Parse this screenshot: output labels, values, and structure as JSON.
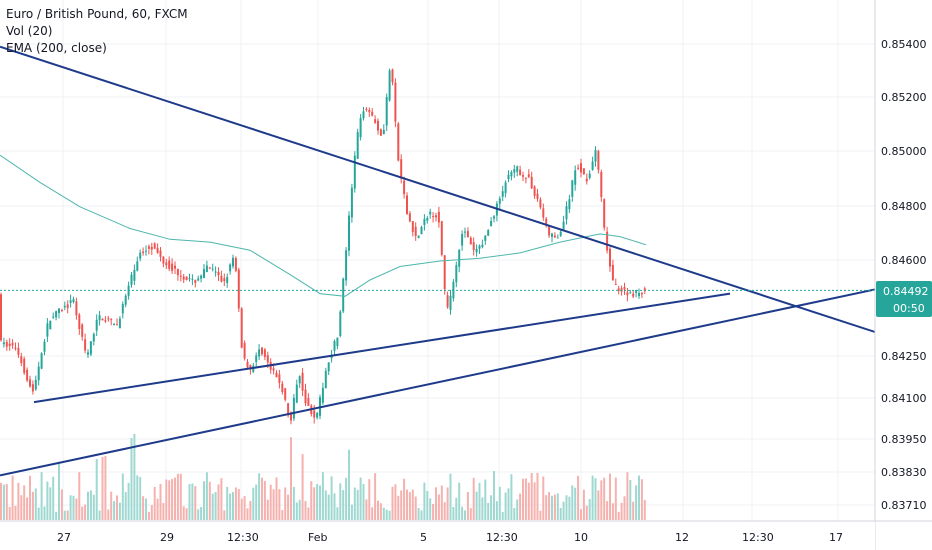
{
  "legend": {
    "symbol": "Euro / British Pound, 60, FXCM",
    "vol": "Vol (20)",
    "ema": "EMA (200, close)"
  },
  "colors": {
    "up": "#26a69a",
    "down": "#ef5350",
    "up_vol": "#9fd8d1",
    "down_vol": "#f5b1ae",
    "ema": "#4db6ac",
    "trendline": "#1e3a8a",
    "last_price_bg": "#26a69a",
    "grid": "#eef1f5"
  },
  "chart_data": {
    "type": "candlestick",
    "symbol": "Euro / British Pound, 60, FXCM",
    "y_axis_ticks": [
      "0.85400",
      "0.85200",
      "0.85000",
      "0.84800",
      "0.84600",
      "0.84250",
      "0.84100",
      "0.83950",
      "0.83830",
      "0.83710"
    ],
    "x_axis_ticks": [
      "27",
      "29",
      "12:30",
      "Feb",
      "5",
      "12:30",
      "10",
      "12",
      "12:30",
      "17"
    ],
    "last_price": "0.84492",
    "countdown": "00:50",
    "price_path": [
      [
        0,
        0.843
      ],
      [
        18,
        0.8428
      ],
      [
        34,
        0.8411
      ],
      [
        50,
        0.8438
      ],
      [
        62,
        0.8442
      ],
      [
        75,
        0.8445
      ],
      [
        88,
        0.8424
      ],
      [
        100,
        0.844
      ],
      [
        118,
        0.8436
      ],
      [
        128,
        0.8448
      ],
      [
        140,
        0.8462
      ],
      [
        152,
        0.8466
      ],
      [
        165,
        0.846
      ],
      [
        178,
        0.8456
      ],
      [
        195,
        0.8452
      ],
      [
        210,
        0.8458
      ],
      [
        225,
        0.8452
      ],
      [
        236,
        0.8462
      ],
      [
        244,
        0.8425
      ],
      [
        252,
        0.842
      ],
      [
        262,
        0.8428
      ],
      [
        272,
        0.842
      ],
      [
        282,
        0.8415
      ],
      [
        292,
        0.84
      ],
      [
        300,
        0.842
      ],
      [
        308,
        0.8407
      ],
      [
        318,
        0.8402
      ],
      [
        328,
        0.8421
      ],
      [
        340,
        0.8434
      ],
      [
        348,
        0.8466
      ],
      [
        358,
        0.8505
      ],
      [
        366,
        0.8518
      ],
      [
        376,
        0.8512
      ],
      [
        384,
        0.8505
      ],
      [
        392,
        0.8534
      ],
      [
        400,
        0.8496
      ],
      [
        408,
        0.8478
      ],
      [
        418,
        0.8468
      ],
      [
        430,
        0.8478
      ],
      [
        440,
        0.8477
      ],
      [
        448,
        0.844
      ],
      [
        456,
        0.8455
      ],
      [
        464,
        0.8472
      ],
      [
        476,
        0.8463
      ],
      [
        486,
        0.8468
      ],
      [
        498,
        0.848
      ],
      [
        508,
        0.849
      ],
      [
        518,
        0.8494
      ],
      [
        530,
        0.849
      ],
      [
        540,
        0.8482
      ],
      [
        550,
        0.847
      ],
      [
        560,
        0.8468
      ],
      [
        570,
        0.8482
      ],
      [
        578,
        0.8496
      ],
      [
        588,
        0.849
      ],
      [
        598,
        0.8501
      ],
      [
        606,
        0.847
      ],
      [
        614,
        0.8452
      ],
      [
        624,
        0.8449
      ],
      [
        634,
        0.8448
      ],
      [
        644,
        0.8449
      ]
    ],
    "ema_path": [
      [
        0,
        0.8499
      ],
      [
        40,
        0.8489
      ],
      [
        80,
        0.848
      ],
      [
        130,
        0.8472
      ],
      [
        170,
        0.8468
      ],
      [
        210,
        0.8467
      ],
      [
        250,
        0.8464
      ],
      [
        290,
        0.8455
      ],
      [
        320,
        0.8448
      ],
      [
        345,
        0.8447
      ],
      [
        370,
        0.8453
      ],
      [
        400,
        0.8458
      ],
      [
        440,
        0.846
      ],
      [
        480,
        0.8461
      ],
      [
        520,
        0.8463
      ],
      [
        560,
        0.8467
      ],
      [
        600,
        0.847
      ],
      [
        620,
        0.8469
      ],
      [
        646,
        0.8466
      ]
    ],
    "trendlines": [
      {
        "x1": 0,
        "y1": 0.8539,
        "x2": 932,
        "y2": 0.8427
      },
      {
        "x1": 34,
        "y1": 0.8408,
        "x2": 730,
        "y2": 0.8448
      },
      {
        "x1": 0,
        "y1": 0.8381,
        "x2": 932,
        "y2": 0.8454
      }
    ]
  }
}
